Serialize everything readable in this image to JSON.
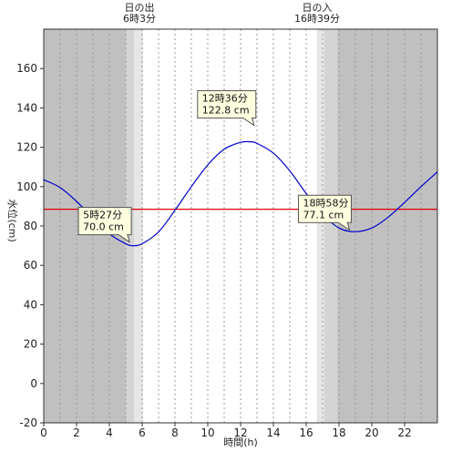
{
  "chart_data": {
    "type": "line",
    "xlabel": "時間(h)",
    "ylabel": "水位(cm)",
    "xlim": [
      0,
      24
    ],
    "ylim": [
      -20,
      180
    ],
    "x_ticks": [
      0,
      2,
      4,
      6,
      8,
      10,
      12,
      14,
      16,
      18,
      20,
      22
    ],
    "y_ticks": [
      -20,
      0,
      20,
      40,
      60,
      80,
      100,
      120,
      140,
      160
    ],
    "grid": "vertical dotted every 1h",
    "reference_line": {
      "value": 88.5,
      "color": "#e00000"
    },
    "sunrise": {
      "label": "日の出",
      "time_text": "6時3分",
      "time": 6.05
    },
    "sunset": {
      "label": "日の入",
      "time_text": "16時39分",
      "time": 16.65
    },
    "night_shading": [
      {
        "from": 0,
        "to": 5.0,
        "shade": "dark"
      },
      {
        "from": 5.0,
        "to": 5.5,
        "shade": "mid"
      },
      {
        "from": 5.5,
        "to": 6.05,
        "shade": "light"
      },
      {
        "from": 16.65,
        "to": 17.1,
        "shade": "light"
      },
      {
        "from": 17.1,
        "to": 17.9,
        "shade": "mid"
      },
      {
        "from": 17.9,
        "to": 24,
        "shade": "dark"
      }
    ],
    "series": [
      {
        "color": "#0000cc",
        "x": [
          0,
          1,
          2,
          3,
          4,
          5,
          5.45,
          6,
          7,
          8,
          9,
          10,
          11,
          12,
          12.6,
          13,
          14,
          15,
          16,
          17,
          18,
          18.97,
          20,
          21,
          22,
          23,
          24
        ],
        "y": [
          103.5,
          99.5,
          92.5,
          84,
          76,
          71,
          70.0,
          71,
          77,
          88,
          100,
          111,
          119,
          122.5,
          122.8,
          122,
          117,
          108,
          96.5,
          86,
          79,
          77.1,
          79,
          84.5,
          92,
          100,
          107.5
        ]
      }
    ],
    "annotations": [
      {
        "label_time": "5時27分",
        "label_value": "70.0 cm",
        "x": 5.45,
        "y": 70.0
      },
      {
        "label_time": "12時36分",
        "label_value": "122.8 cm",
        "x": 12.6,
        "y": 122.8
      },
      {
        "label_time": "18時58分",
        "label_value": "77.1 cm",
        "x": 18.97,
        "y": 77.1
      }
    ]
  },
  "colors": {
    "night_dark": "#c0c0c0",
    "night_mid": "#d4d4d4",
    "night_light": "#e6e6e6",
    "callout_fill": "#ffffe0",
    "grid": "#9a9a9a"
  }
}
